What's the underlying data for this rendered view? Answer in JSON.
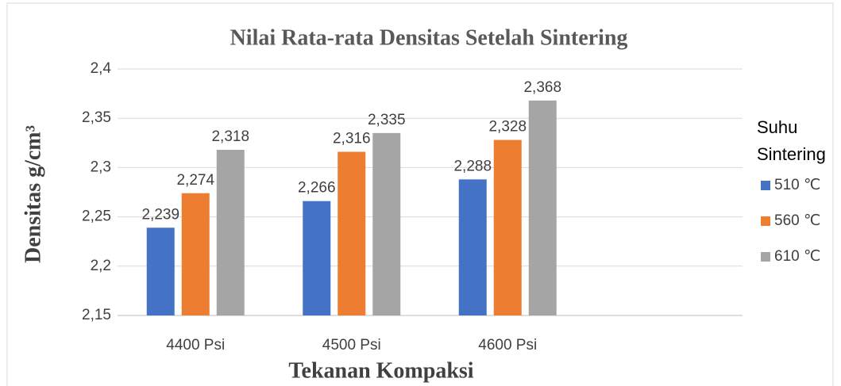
{
  "chart_data": {
    "type": "bar",
    "title": "Nilai Rata-rata Densitas Setelah Sintering",
    "x_label": "Tekanan Kompaksi",
    "y_label": "Densitas g/cm³",
    "legend_title": "Suhu Sintering",
    "legend_position": "right",
    "categories": [
      "4400 Psi",
      "4500 Psi",
      "4600 Psi"
    ],
    "series": [
      {
        "name": "510 ℃",
        "color": "#4472c4",
        "values": [
          2.239,
          2.266,
          2.288
        ],
        "value_labels": [
          "2,239",
          "2,266",
          "2,288"
        ]
      },
      {
        "name": "560 ℃",
        "color": "#ed7d31",
        "values": [
          2.274,
          2.316,
          2.328
        ],
        "value_labels": [
          "2,274",
          "2,316",
          "2,328"
        ]
      },
      {
        "name": "610 ℃",
        "color": "#a5a5a5",
        "values": [
          2.318,
          2.335,
          2.368
        ],
        "value_labels": [
          "2,318",
          "2,335",
          "2,368"
        ]
      }
    ],
    "ylim": [
      2.15,
      2.4
    ],
    "yticks": [
      {
        "value": 2.15,
        "label": "2,15"
      },
      {
        "value": 2.2,
        "label": "2,2"
      },
      {
        "value": 2.25,
        "label": "2,25"
      },
      {
        "value": 2.3,
        "label": "2,3"
      },
      {
        "value": 2.35,
        "label": "2,35"
      },
      {
        "value": 2.4,
        "label": "2,4"
      }
    ],
    "grid": true
  }
}
